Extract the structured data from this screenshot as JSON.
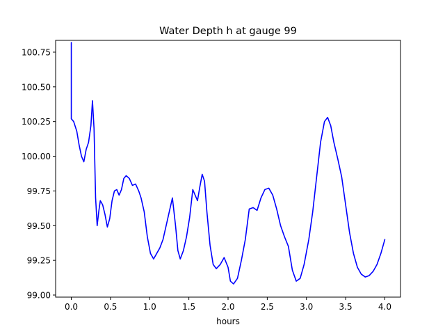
{
  "chart_data": {
    "type": "line",
    "title": "Water Depth h at gauge 99",
    "xlabel": "hours",
    "ylabel": "",
    "xlim": [
      -0.2,
      4.2
    ],
    "ylim": [
      98.985,
      100.835
    ],
    "xticks": [
      0.0,
      0.5,
      1.0,
      1.5,
      2.0,
      2.5,
      3.0,
      3.5,
      4.0
    ],
    "xtick_labels": [
      "0.0",
      "0.5",
      "1.0",
      "1.5",
      "2.0",
      "2.5",
      "3.0",
      "3.5",
      "4.0"
    ],
    "yticks": [
      99.0,
      99.25,
      99.5,
      99.75,
      100.0,
      100.25,
      100.5,
      100.75
    ],
    "ytick_labels": [
      "99.00",
      "99.25",
      "99.50",
      "99.75",
      "100.00",
      "100.25",
      "100.50",
      "100.75"
    ],
    "grid": false,
    "series": [
      {
        "color": "#0000ff",
        "x": [
          0.0,
          0.0,
          0.0,
          0.03,
          0.07,
          0.1,
          0.13,
          0.16,
          0.19,
          0.22,
          0.25,
          0.27,
          0.29,
          0.31,
          0.33,
          0.35,
          0.37,
          0.4,
          0.43,
          0.46,
          0.49,
          0.52,
          0.55,
          0.58,
          0.61,
          0.64,
          0.67,
          0.7,
          0.74,
          0.78,
          0.82,
          0.86,
          0.89,
          0.93,
          0.97,
          1.01,
          1.05,
          1.09,
          1.13,
          1.17,
          1.21,
          1.25,
          1.29,
          1.33,
          1.36,
          1.39,
          1.43,
          1.47,
          1.51,
          1.55,
          1.58,
          1.61,
          1.64,
          1.67,
          1.7,
          1.73,
          1.77,
          1.81,
          1.85,
          1.9,
          1.95,
          2.0,
          2.03,
          2.07,
          2.12,
          2.17,
          2.22,
          2.27,
          2.32,
          2.37,
          2.42,
          2.47,
          2.52,
          2.57,
          2.62,
          2.67,
          2.72,
          2.77,
          2.82,
          2.87,
          2.92,
          2.97,
          3.03,
          3.08,
          3.13,
          3.18,
          3.23,
          3.27,
          3.31,
          3.35,
          3.4,
          3.45,
          3.5,
          3.55,
          3.6,
          3.65,
          3.7,
          3.75,
          3.8,
          3.85,
          3.9,
          3.95,
          4.0
        ],
        "y": [
          100.82,
          100.5,
          100.27,
          100.25,
          100.18,
          100.08,
          100.0,
          99.96,
          100.05,
          100.1,
          100.22,
          100.4,
          100.2,
          99.7,
          99.5,
          99.6,
          99.68,
          99.65,
          99.58,
          99.49,
          99.55,
          99.68,
          99.75,
          99.76,
          99.72,
          99.76,
          99.84,
          99.86,
          99.84,
          99.79,
          99.8,
          99.75,
          99.7,
          99.6,
          99.42,
          99.3,
          99.26,
          99.3,
          99.34,
          99.4,
          99.5,
          99.6,
          99.7,
          99.5,
          99.32,
          99.26,
          99.32,
          99.42,
          99.56,
          99.76,
          99.72,
          99.68,
          99.78,
          99.87,
          99.82,
          99.6,
          99.36,
          99.22,
          99.19,
          99.22,
          99.27,
          99.2,
          99.1,
          99.08,
          99.12,
          99.25,
          99.4,
          99.62,
          99.63,
          99.61,
          99.7,
          99.76,
          99.77,
          99.72,
          99.62,
          99.5,
          99.42,
          99.35,
          99.18,
          99.1,
          99.12,
          99.22,
          99.4,
          99.6,
          99.85,
          100.1,
          100.25,
          100.28,
          100.22,
          100.1,
          99.98,
          99.85,
          99.65,
          99.45,
          99.3,
          99.2,
          99.15,
          99.13,
          99.14,
          99.17,
          99.22,
          99.3,
          99.4
        ]
      }
    ]
  }
}
